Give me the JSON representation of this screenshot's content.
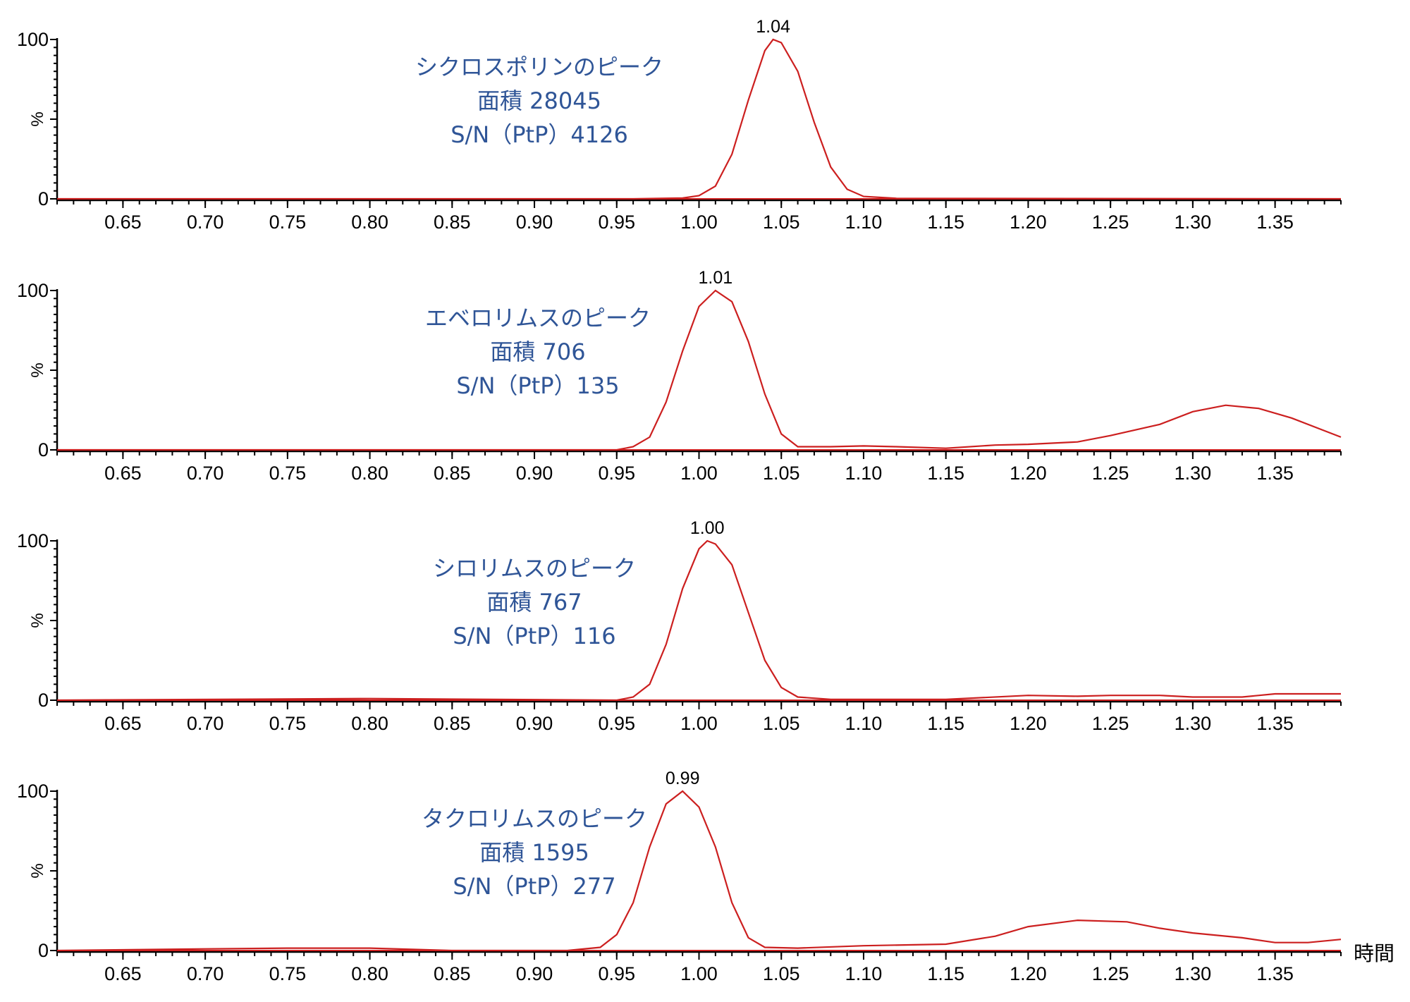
{
  "chart_data": [
    {
      "type": "line",
      "xlim": [
        0.61,
        1.39
      ],
      "ylim": [
        0,
        100
      ],
      "x_ticks": [
        "0.65",
        "0.70",
        "0.75",
        "0.80",
        "0.85",
        "0.90",
        "0.95",
        "1.00",
        "1.05",
        "1.10",
        "1.15",
        "1.20",
        "1.25",
        "1.30",
        "1.35"
      ],
      "y_ticks": [
        "0",
        "%",
        "100"
      ],
      "peak_label": "1.04",
      "peak_x": 1.045,
      "annotation": [
        "シクロスポリンのピーク",
        "面積 28045",
        "S/N（PtP）4126"
      ],
      "series": [
        {
          "color": "#cc1f1f",
          "points": [
            [
              0.61,
              0
            ],
            [
              0.96,
              0
            ],
            [
              0.99,
              0.5
            ],
            [
              1.0,
              2
            ],
            [
              1.01,
              8
            ],
            [
              1.02,
              28
            ],
            [
              1.03,
              62
            ],
            [
              1.04,
              93
            ],
            [
              1.045,
              100
            ],
            [
              1.05,
              98
            ],
            [
              1.06,
              80
            ],
            [
              1.07,
              48
            ],
            [
              1.08,
              20
            ],
            [
              1.09,
              6
            ],
            [
              1.1,
              1.5
            ],
            [
              1.12,
              0.3
            ],
            [
              1.39,
              0
            ]
          ]
        }
      ]
    },
    {
      "type": "line",
      "xlim": [
        0.61,
        1.39
      ],
      "ylim": [
        0,
        100
      ],
      "x_ticks": [
        "0.65",
        "0.70",
        "0.75",
        "0.80",
        "0.85",
        "0.90",
        "0.95",
        "1.00",
        "1.05",
        "1.10",
        "1.15",
        "1.20",
        "1.25",
        "1.30",
        "1.35"
      ],
      "y_ticks": [
        "0",
        "%",
        "100"
      ],
      "peak_label": "1.01",
      "peak_x": 1.01,
      "annotation": [
        "エベロリムスのピーク",
        "面積 706",
        "S/N（PtP）135"
      ],
      "series": [
        {
          "color": "#cc1f1f",
          "points": [
            [
              0.61,
              0
            ],
            [
              0.95,
              0
            ],
            [
              0.96,
              2
            ],
            [
              0.97,
              8
            ],
            [
              0.98,
              30
            ],
            [
              0.99,
              62
            ],
            [
              1.0,
              90
            ],
            [
              1.01,
              100
            ],
            [
              1.02,
              93
            ],
            [
              1.03,
              68
            ],
            [
              1.04,
              35
            ],
            [
              1.05,
              10
            ],
            [
              1.06,
              2
            ],
            [
              1.08,
              2
            ],
            [
              1.1,
              2.5
            ],
            [
              1.12,
              2
            ],
            [
              1.15,
              1
            ],
            [
              1.18,
              3
            ],
            [
              1.2,
              3.5
            ],
            [
              1.23,
              5
            ],
            [
              1.25,
              9
            ],
            [
              1.28,
              16
            ],
            [
              1.3,
              24
            ],
            [
              1.32,
              28
            ],
            [
              1.34,
              26
            ],
            [
              1.36,
              20
            ],
            [
              1.38,
              12
            ],
            [
              1.39,
              8
            ]
          ]
        }
      ]
    },
    {
      "type": "line",
      "xlim": [
        0.61,
        1.39
      ],
      "ylim": [
        0,
        100
      ],
      "x_ticks": [
        "0.65",
        "0.70",
        "0.75",
        "0.80",
        "0.85",
        "0.90",
        "0.95",
        "1.00",
        "1.05",
        "1.10",
        "1.15",
        "1.20",
        "1.25",
        "1.30",
        "1.35"
      ],
      "y_ticks": [
        "0",
        "%",
        "100"
      ],
      "peak_label": "1.00",
      "peak_x": 1.005,
      "annotation": [
        "シロリムスのピーク",
        "面積 767",
        "S/N（PtP）116"
      ],
      "series": [
        {
          "color": "#cc1f1f",
          "points": [
            [
              0.61,
              0
            ],
            [
              0.8,
              1
            ],
            [
              0.95,
              0
            ],
            [
              0.96,
              2
            ],
            [
              0.97,
              10
            ],
            [
              0.98,
              35
            ],
            [
              0.99,
              70
            ],
            [
              1.0,
              95
            ],
            [
              1.005,
              100
            ],
            [
              1.01,
              98
            ],
            [
              1.02,
              85
            ],
            [
              1.03,
              55
            ],
            [
              1.04,
              25
            ],
            [
              1.05,
              8
            ],
            [
              1.06,
              2
            ],
            [
              1.08,
              0.5
            ],
            [
              1.15,
              0.5
            ],
            [
              1.2,
              3
            ],
            [
              1.23,
              2.5
            ],
            [
              1.25,
              3
            ],
            [
              1.28,
              3
            ],
            [
              1.3,
              2
            ],
            [
              1.33,
              2
            ],
            [
              1.35,
              4
            ],
            [
              1.39,
              4
            ]
          ]
        }
      ]
    },
    {
      "type": "line",
      "xlim": [
        0.61,
        1.39
      ],
      "ylim": [
        0,
        100
      ],
      "x_ticks": [
        "0.65",
        "0.70",
        "0.75",
        "0.80",
        "0.85",
        "0.90",
        "0.95",
        "1.00",
        "1.05",
        "1.10",
        "1.15",
        "1.20",
        "1.25",
        "1.30",
        "1.35"
      ],
      "y_ticks": [
        "0",
        "%",
        "100"
      ],
      "peak_label": "0.99",
      "peak_x": 0.99,
      "xlabel": "時間",
      "annotation": [
        "タクロリムスのピーク",
        "面積 1595",
        "S/N（PtP）277"
      ],
      "series": [
        {
          "color": "#cc1f1f",
          "points": [
            [
              0.61,
              0
            ],
            [
              0.7,
              1
            ],
            [
              0.75,
              1.5
            ],
            [
              0.8,
              1.5
            ],
            [
              0.85,
              0
            ],
            [
              0.92,
              0
            ],
            [
              0.94,
              2
            ],
            [
              0.95,
              10
            ],
            [
              0.96,
              30
            ],
            [
              0.97,
              65
            ],
            [
              0.98,
              92
            ],
            [
              0.99,
              100
            ],
            [
              1.0,
              90
            ],
            [
              1.01,
              65
            ],
            [
              1.02,
              30
            ],
            [
              1.03,
              8
            ],
            [
              1.04,
              2
            ],
            [
              1.06,
              1.5
            ],
            [
              1.1,
              3
            ],
            [
              1.15,
              4
            ],
            [
              1.18,
              9
            ],
            [
              1.2,
              15
            ],
            [
              1.23,
              19
            ],
            [
              1.26,
              18
            ],
            [
              1.28,
              14
            ],
            [
              1.3,
              11
            ],
            [
              1.33,
              8
            ],
            [
              1.35,
              5
            ],
            [
              1.37,
              5
            ],
            [
              1.39,
              7
            ]
          ]
        }
      ]
    }
  ]
}
